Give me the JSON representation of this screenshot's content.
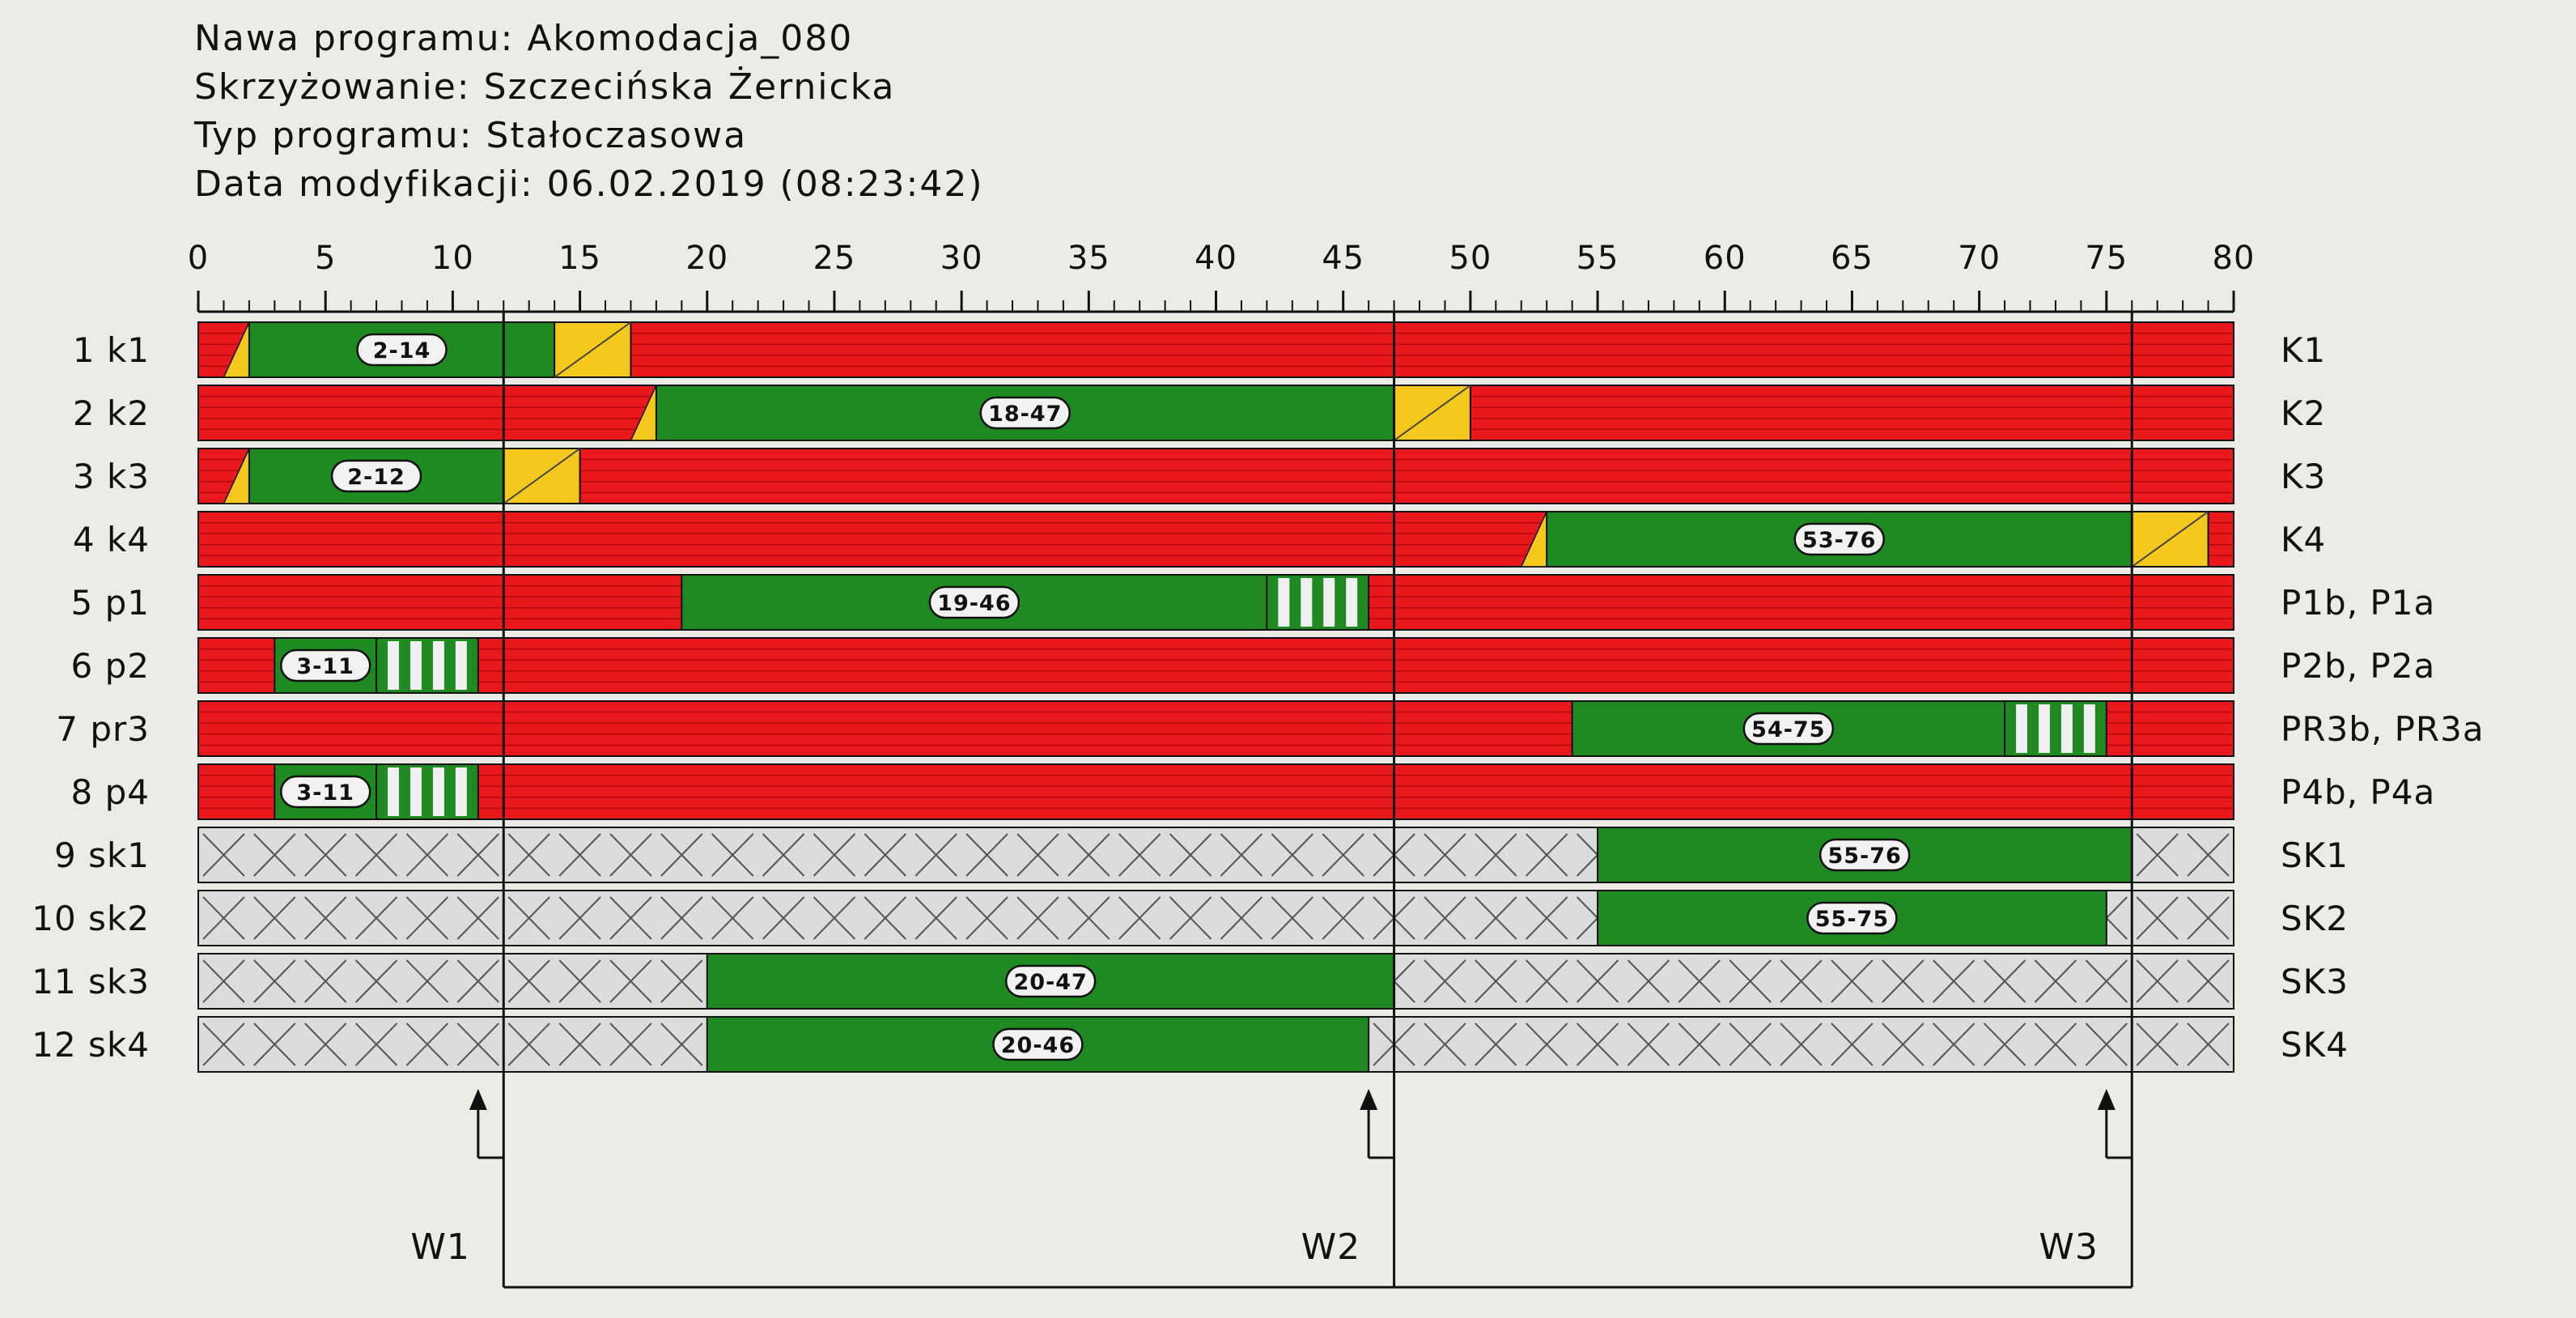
{
  "header": {
    "line1": "Nawa programu: Akomodacja_080",
    "line2": "Skrzyżowanie: Szczecińska Żernicka",
    "line3": "Typ programu: Stałoczasowa",
    "line4": "Data modyfikacji: 06.02.2019 (08:23:42)"
  },
  "colors": {
    "red": "#e8181c",
    "green": "#1f8a21",
    "yellow": "#f4c81c",
    "grey": "#dcdcdc",
    "line": "#111111"
  },
  "axis": {
    "min": 0,
    "max": 80,
    "labels": [
      "0",
      "5",
      "10",
      "15",
      "20",
      "25",
      "30",
      "35",
      "40",
      "45",
      "50",
      "55",
      "60",
      "65",
      "70",
      "75",
      "80"
    ]
  },
  "rows": [
    {
      "left": "1 k1",
      "right": "K1",
      "type": "vehicle",
      "bg": "red",
      "segments": [
        {
          "kind": "redyellow",
          "from": 1,
          "to": 2
        },
        {
          "kind": "green",
          "from": 2,
          "to": 14,
          "label": "2-14"
        },
        {
          "kind": "yellow",
          "from": 14,
          "to": 17
        }
      ]
    },
    {
      "left": "2 k2",
      "right": "K2",
      "type": "vehicle",
      "bg": "red",
      "segments": [
        {
          "kind": "redyellow",
          "from": 17,
          "to": 18
        },
        {
          "kind": "green",
          "from": 18,
          "to": 47,
          "label": "18-47"
        },
        {
          "kind": "yellow",
          "from": 47,
          "to": 50
        }
      ]
    },
    {
      "left": "3 k3",
      "right": "K3",
      "type": "vehicle",
      "bg": "red",
      "segments": [
        {
          "kind": "redyellow",
          "from": 1,
          "to": 2
        },
        {
          "kind": "green",
          "from": 2,
          "to": 12,
          "label": "2-12"
        },
        {
          "kind": "yellow",
          "from": 12,
          "to": 15
        }
      ]
    },
    {
      "left": "4 k4",
      "right": "K4",
      "type": "vehicle",
      "bg": "red",
      "segments": [
        {
          "kind": "redyellow",
          "from": 52,
          "to": 53
        },
        {
          "kind": "green",
          "from": 53,
          "to": 76,
          "label": "53-76"
        },
        {
          "kind": "yellow",
          "from": 76,
          "to": 79
        }
      ]
    },
    {
      "left": "5 p1",
      "right": "P1b, P1a",
      "type": "pedestrian",
      "bg": "red",
      "segments": [
        {
          "kind": "green",
          "from": 19,
          "to": 42,
          "label": "19-46"
        },
        {
          "kind": "stripes",
          "from": 42,
          "to": 46
        }
      ]
    },
    {
      "left": "6 p2",
      "right": "P2b, P2a",
      "type": "pedestrian",
      "bg": "red",
      "segments": [
        {
          "kind": "green",
          "from": 3,
          "to": 7,
          "label": "3-11"
        },
        {
          "kind": "stripes",
          "from": 7,
          "to": 11
        }
      ]
    },
    {
      "left": "7 pr3",
      "right": "PR3b, PR3a",
      "type": "pedestrian",
      "bg": "red",
      "segments": [
        {
          "kind": "green",
          "from": 54,
          "to": 71,
          "label": "54-75"
        },
        {
          "kind": "stripes",
          "from": 71,
          "to": 75
        }
      ]
    },
    {
      "left": "8 p4",
      "right": "P4b, P4a",
      "type": "pedestrian",
      "bg": "red",
      "segments": [
        {
          "kind": "green",
          "from": 3,
          "to": 7,
          "label": "3-11"
        },
        {
          "kind": "stripes",
          "from": 7,
          "to": 11
        }
      ]
    },
    {
      "left": "9 sk1",
      "right": "SK1",
      "type": "conditional",
      "bg": "grey",
      "segments": [
        {
          "kind": "green",
          "from": 55,
          "to": 76,
          "label": "55-76"
        }
      ]
    },
    {
      "left": "10 sk2",
      "right": "SK2",
      "type": "conditional",
      "bg": "grey",
      "segments": [
        {
          "kind": "green",
          "from": 55,
          "to": 75,
          "label": "55-75"
        }
      ]
    },
    {
      "left": "11 sk3",
      "right": "SK3",
      "type": "conditional",
      "bg": "grey",
      "segments": [
        {
          "kind": "green",
          "from": 20,
          "to": 47,
          "label": "20-47"
        }
      ]
    },
    {
      "left": "12 sk4",
      "right": "SK4",
      "type": "conditional",
      "bg": "grey",
      "segments": [
        {
          "kind": "green",
          "from": 20,
          "to": 46,
          "label": "20-46"
        }
      ]
    }
  ],
  "markers": [
    {
      "label": "W1",
      "at": 11
    },
    {
      "label": "W2",
      "at": 46
    },
    {
      "label": "W3",
      "at": 75
    }
  ],
  "phase_lines": [
    12,
    47,
    76
  ]
}
